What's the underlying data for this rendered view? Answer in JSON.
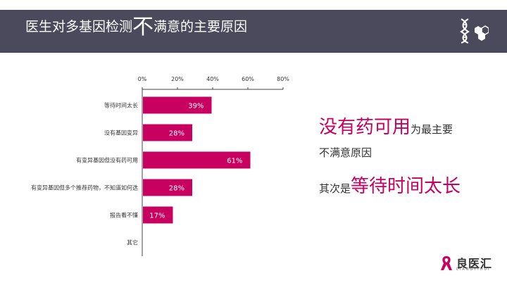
{
  "header": {
    "title_part1": "医生对多基因检测",
    "title_big": "不",
    "title_part2": "满意的主要原因"
  },
  "chart_data": {
    "type": "bar",
    "orientation": "horizontal",
    "categories": [
      "等待时间太长",
      "没有基因变异",
      "有变异基因但没有药可用",
      "有变异基因但多个推荐药物，不知道如何选",
      "报告看不懂",
      "其它"
    ],
    "values": [
      39,
      28,
      61,
      28,
      17,
      null
    ],
    "value_labels": [
      "39%",
      "28%",
      "61%",
      "28%",
      "17%",
      ""
    ],
    "xlim": [
      0,
      80
    ],
    "xticks": [
      "0%",
      "20%",
      "40%",
      "60%",
      "80%"
    ],
    "xaxis_position": "top",
    "bar_color": "#c8005f",
    "grid": false
  },
  "notes": {
    "line1_highlight": "没有药可用",
    "line1_rest": "为最主要",
    "line2": "不满意原因",
    "line3_prefix": "其次是",
    "line3_highlight": "等待时间太长"
  },
  "brand": {
    "name": "良医汇",
    "sub": "LIANGYIHUI",
    "icon": "ribbon-icon",
    "header_icon": "dna-hexagon-icon"
  },
  "colors": {
    "header_bg": "#4b4a5c",
    "accent": "#c8005f"
  }
}
